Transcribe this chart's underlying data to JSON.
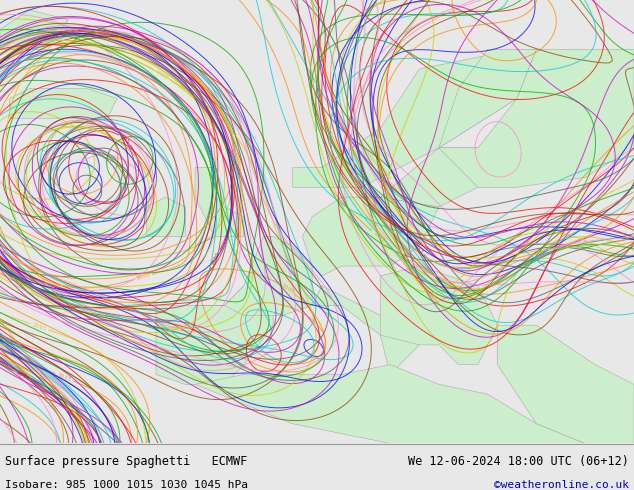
{
  "title_left": "Surface pressure Spaghetti   ECMWF",
  "title_right": "We 12-06-2024 18:00 UTC (06+12)",
  "subtitle_left": "Isobare: 985 1000 1015 1030 1045 hPa",
  "subtitle_right": "©weatheronline.co.uk",
  "subtitle_right_color": "#0000cc",
  "bg_color": "#e8e8e8",
  "land_color": "#cceecc",
  "ocean_color": "#e8e8e8",
  "border_color": "#aaaaaa",
  "bottom_bar_color": "#f0f0f0",
  "text_color": "#000000",
  "font_family": "monospace",
  "figsize": [
    6.34,
    4.9
  ],
  "dpi": 100,
  "xlim": [
    -25,
    40
  ],
  "ylim": [
    30,
    75
  ],
  "isobar_colors": [
    "#ff0000",
    "#ff8800",
    "#cccc00",
    "#00aa00",
    "#0000ff",
    "#cc00cc",
    "#00cccc",
    "#884400",
    "#ff88cc",
    "#555555"
  ],
  "isobar_values": [
    985,
    1000,
    1015,
    1030,
    1045
  ],
  "n_members": 50,
  "bottom_bar_height": 0.095
}
